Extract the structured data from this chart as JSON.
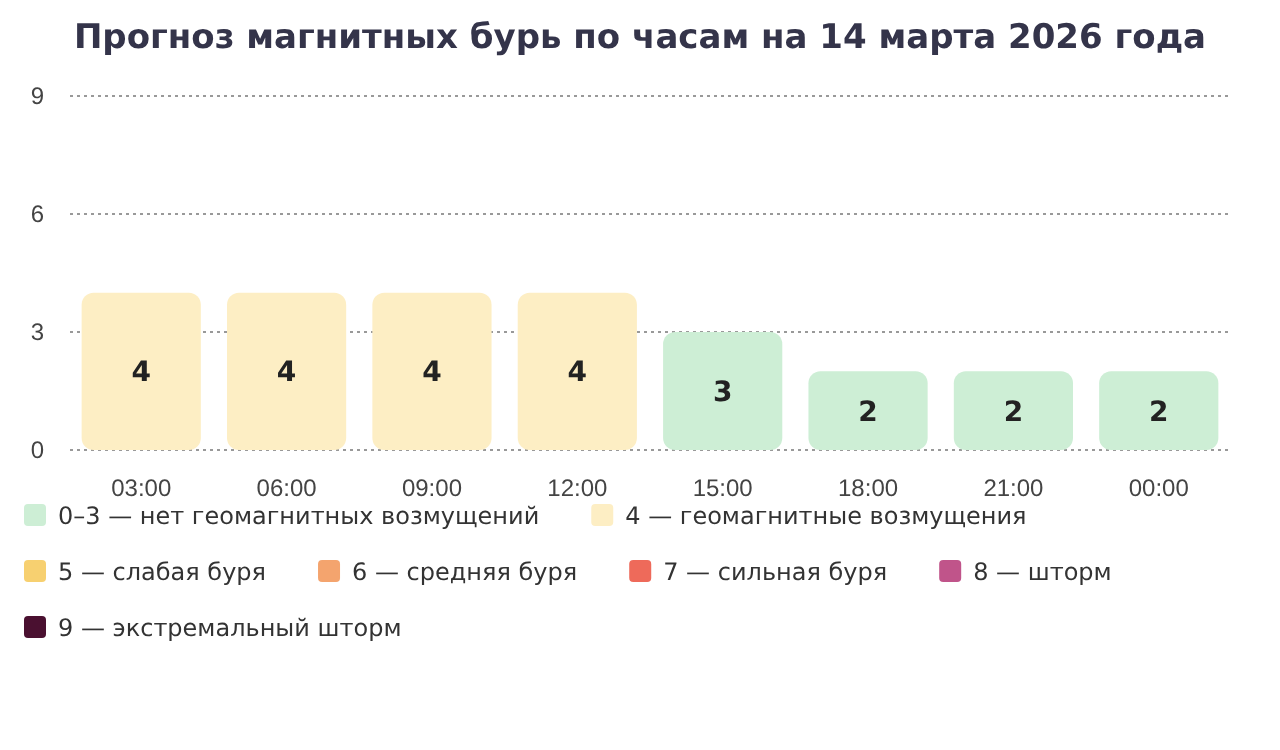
{
  "chart_data": {
    "type": "bar",
    "title": "Прогноз магнитных бурь по часам на 14 марта 2026 года",
    "categories": [
      "03:00",
      "06:00",
      "09:00",
      "12:00",
      "15:00",
      "18:00",
      "21:00",
      "00:00"
    ],
    "stacked": true,
    "series": [
      {
        "name": "0–3 — нет геомагнитных возмущений",
        "color": "#cdeed5",
        "values": [
          null,
          null,
          null,
          null,
          3,
          2,
          2,
          2
        ]
      },
      {
        "name": "4 — геомагнитные возмущения",
        "color": "#fdeec4",
        "values": [
          4,
          4,
          4,
          4,
          null,
          null,
          null,
          null
        ]
      },
      {
        "name": "5 — слабая буря",
        "color": "#f7d070",
        "values": [
          null,
          null,
          null,
          null,
          null,
          null,
          null,
          null
        ]
      },
      {
        "name": "6 — средняя буря",
        "color": "#f4a46e",
        "values": [
          null,
          null,
          null,
          null,
          null,
          null,
          null,
          null
        ]
      },
      {
        "name": "7 — сильная буря",
        "color": "#ee6a5a",
        "values": [
          null,
          null,
          null,
          null,
          null,
          null,
          null,
          null
        ]
      },
      {
        "name": "8 — шторм",
        "color": "#c0548a",
        "values": [
          null,
          null,
          null,
          null,
          null,
          null,
          null,
          null
        ]
      },
      {
        "name": "9 — экстремальный шторм",
        "color": "#4a1030",
        "values": [
          null,
          null,
          null,
          null,
          null,
          null,
          null,
          null
        ]
      }
    ],
    "ylim": [
      0,
      9
    ],
    "yticks": [
      0,
      3,
      6,
      9
    ],
    "grid": "y",
    "data_labels": true,
    "legend": "bottom"
  }
}
